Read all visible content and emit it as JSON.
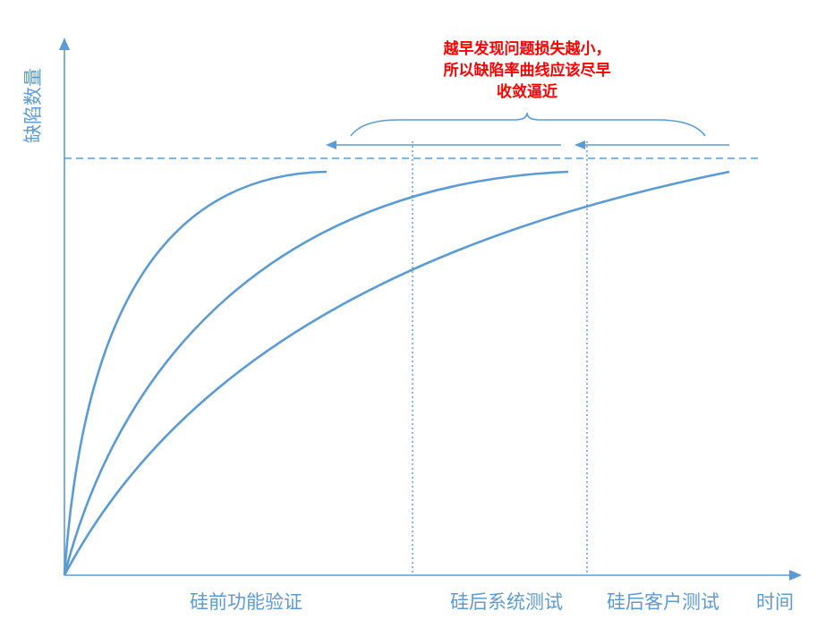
{
  "y_axis_label": "缺陷数量",
  "x_axis_label": "时间",
  "phases": [
    {
      "label": "硅前功能验证"
    },
    {
      "label": "硅后系统测试"
    },
    {
      "label": "硅后客户测试"
    }
  ],
  "annotation": {
    "lines": [
      "越早发现问题损失越小，",
      "所以缺陷率曲线应该尽早",
      "收敛逼近"
    ],
    "color": "#ff0000"
  },
  "colors": {
    "line": "#5b9bd5",
    "axis": "#5b9bd5"
  },
  "curves": [
    {
      "name": "curve-fast-convergence"
    },
    {
      "name": "curve-medium-convergence"
    },
    {
      "name": "curve-slow-convergence"
    }
  ]
}
